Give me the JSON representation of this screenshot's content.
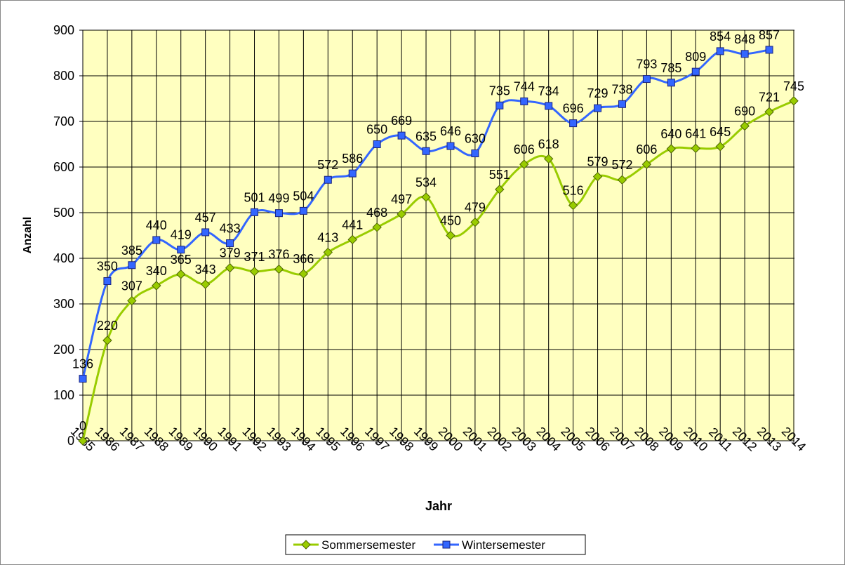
{
  "chart_data": {
    "type": "line",
    "x_label": "Jahr",
    "y_label": "Anzahl",
    "categories": [
      "1985",
      "1986",
      "1987",
      "1988",
      "1989",
      "1990",
      "1991",
      "1992",
      "1993",
      "1994",
      "1995",
      "1996",
      "1997",
      "1998",
      "1999",
      "2000",
      "2001",
      "2002",
      "2003",
      "2004",
      "2005",
      "2006",
      "2007",
      "2008",
      "2009",
      "2010",
      "2011",
      "2012",
      "2013",
      "2014"
    ],
    "series": [
      {
        "name": "Sommersemester",
        "color": "#99cc00",
        "marker": "diamond",
        "values": [
          0,
          220,
          307,
          340,
          365,
          343,
          379,
          371,
          376,
          366,
          413,
          441,
          468,
          497,
          534,
          450,
          479,
          551,
          606,
          618,
          516,
          579,
          572,
          606,
          640,
          641,
          645,
          690,
          721,
          745
        ]
      },
      {
        "name": "Wintersemester",
        "color": "#3366ff",
        "marker": "square",
        "values": [
          136,
          350,
          385,
          440,
          419,
          457,
          433,
          501,
          499,
          504,
          572,
          586,
          650,
          669,
          635,
          646,
          630,
          735,
          744,
          734,
          696,
          729,
          738,
          793,
          785,
          809,
          854,
          848,
          857,
          null
        ]
      }
    ],
    "ylim": [
      0,
      900
    ],
    "yticks": [
      0,
      100,
      200,
      300,
      400,
      500,
      600,
      700,
      800,
      900
    ],
    "grid": true,
    "smooth": true,
    "legend": "bottom",
    "data_labels": true
  }
}
